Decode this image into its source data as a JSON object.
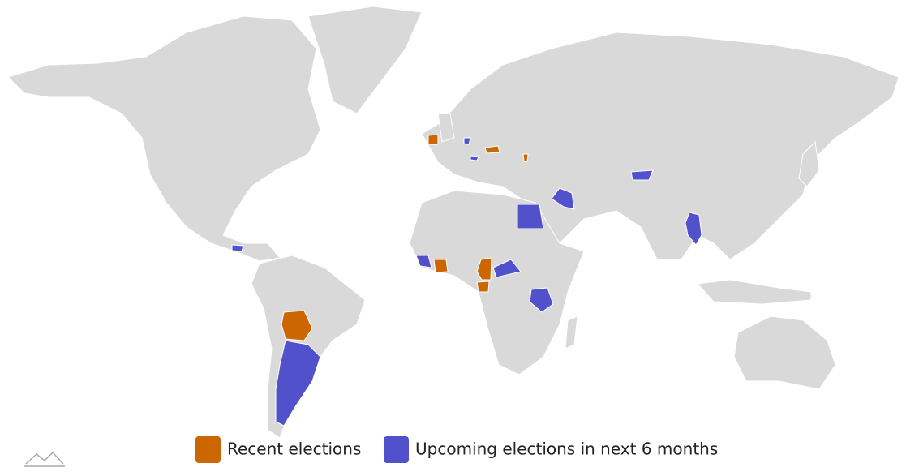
{
  "legend": {
    "items": [
      {
        "label": "Recent elections",
        "color": "#cc6600"
      },
      {
        "label": "Upcoming elections in next 6 months",
        "color": "#5151cc"
      }
    ]
  }
}
